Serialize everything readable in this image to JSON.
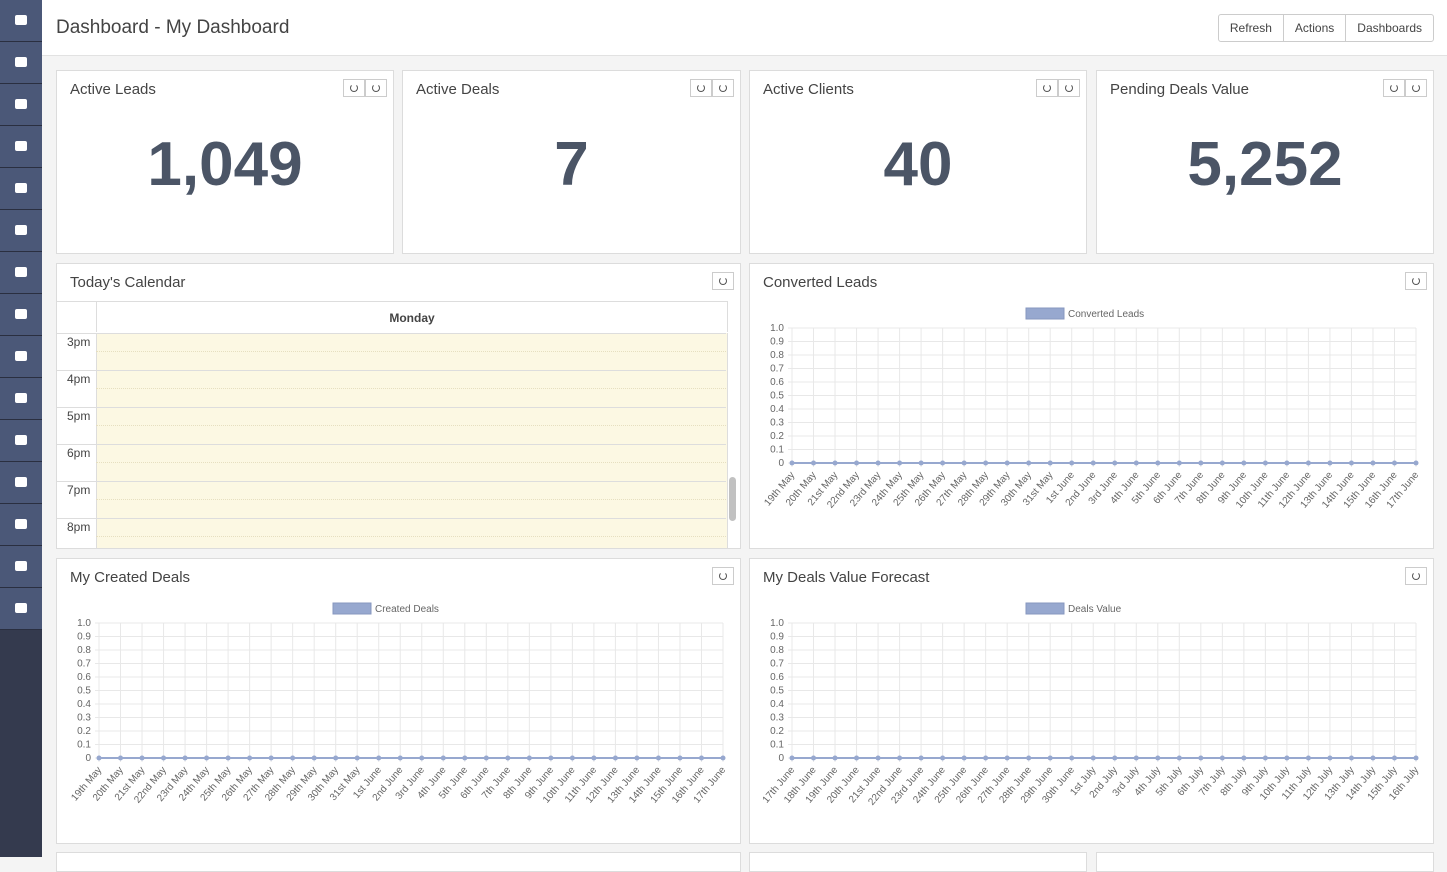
{
  "header": {
    "title": "Dashboard - My Dashboard",
    "buttons": [
      "Refresh",
      "Actions",
      "Dashboards"
    ]
  },
  "cards": [
    {
      "title": "Active Leads",
      "value": "1,049"
    },
    {
      "title": "Active Deals",
      "value": "7"
    },
    {
      "title": "Active Clients",
      "value": "40"
    },
    {
      "title": "Pending Deals Value",
      "value": "5,252"
    }
  ],
  "calendar": {
    "title": "Today's Calendar",
    "day": "Monday",
    "times": [
      "3pm",
      "4pm",
      "5pm",
      "6pm",
      "7pm",
      "8pm"
    ]
  },
  "charts": [
    {
      "type": "line",
      "title": "Converted Leads",
      "categories": [
        "19th May",
        "20th May",
        "21st May",
        "22nd May",
        "23rd May",
        "24th May",
        "25th May",
        "26th May",
        "27th May",
        "28th May",
        "29th May",
        "30th May",
        "31st May",
        "1st June",
        "2nd June",
        "3rd June",
        "4th June",
        "5th June",
        "6th June",
        "7th June",
        "8th June",
        "9th June",
        "10th June",
        "11th June",
        "12th June",
        "13th June",
        "14th June",
        "15th June",
        "16th June",
        "17th June"
      ],
      "series": [
        {
          "name": "Converted Leads",
          "color": "#97a8cf",
          "values": [
            0,
            0,
            0,
            0,
            0,
            0,
            0,
            0,
            0,
            0,
            0,
            0,
            0,
            0,
            0,
            0,
            0,
            0,
            0,
            0,
            0,
            0,
            0,
            0,
            0,
            0,
            0,
            0,
            0,
            0
          ]
        }
      ],
      "ylim": [
        0,
        1
      ],
      "yticks": [
        0,
        0.1,
        0.2,
        0.3,
        0.4,
        0.5,
        0.6,
        0.7,
        0.8,
        0.9,
        {
          "value": 1,
          "label": "1.0"
        }
      ],
      "grid": true
    },
    {
      "type": "line",
      "title": "My Created Deals",
      "categories": [
        "19th May",
        "20th May",
        "21st May",
        "22nd May",
        "23rd May",
        "24th May",
        "25th May",
        "26th May",
        "27th May",
        "28th May",
        "29th May",
        "30th May",
        "31st May",
        "1st June",
        "2nd June",
        "3rd June",
        "4th June",
        "5th June",
        "6th June",
        "7th June",
        "8th June",
        "9th June",
        "10th June",
        "11th June",
        "12th June",
        "13th June",
        "14th June",
        "15th June",
        "16th June",
        "17th June"
      ],
      "series": [
        {
          "name": "Created Deals",
          "color": "#97a8cf",
          "values": [
            0,
            0,
            0,
            0,
            0,
            0,
            0,
            0,
            0,
            0,
            0,
            0,
            0,
            0,
            0,
            0,
            0,
            0,
            0,
            0,
            0,
            0,
            0,
            0,
            0,
            0,
            0,
            0,
            0,
            0
          ]
        }
      ],
      "ylim": [
        0,
        1
      ],
      "yticks": [
        0,
        0.1,
        0.2,
        0.3,
        0.4,
        0.5,
        0.6,
        0.7,
        0.8,
        0.9,
        {
          "value": 1,
          "label": "1.0"
        }
      ],
      "grid": true
    },
    {
      "type": "line",
      "title": "My Deals Value Forecast",
      "categories": [
        "17th June",
        "18th June",
        "19th June",
        "20th June",
        "21st June",
        "22nd June",
        "23rd June",
        "24th June",
        "25th June",
        "26th June",
        "27th June",
        "28th June",
        "29th June",
        "30th June",
        "1st July",
        "2nd July",
        "3rd July",
        "4th July",
        "5th July",
        "6th July",
        "7th July",
        "8th July",
        "9th July",
        "10th July",
        "11th July",
        "12th July",
        "13th July",
        "14th July",
        "15th July",
        "16th July"
      ],
      "series": [
        {
          "name": "Deals Value",
          "color": "#97a8cf",
          "values": [
            0,
            0,
            0,
            0,
            0,
            0,
            0,
            0,
            0,
            0,
            0,
            0,
            0,
            0,
            0,
            0,
            0,
            0,
            0,
            0,
            0,
            0,
            0,
            0,
            0,
            0,
            0,
            0,
            0,
            0
          ]
        }
      ],
      "ylim": [
        0,
        1
      ],
      "yticks": [
        0,
        0.1,
        0.2,
        0.3,
        0.4,
        0.5,
        0.6,
        0.7,
        0.8,
        0.9,
        {
          "value": 1,
          "label": "1.0"
        }
      ],
      "grid": true
    }
  ]
}
